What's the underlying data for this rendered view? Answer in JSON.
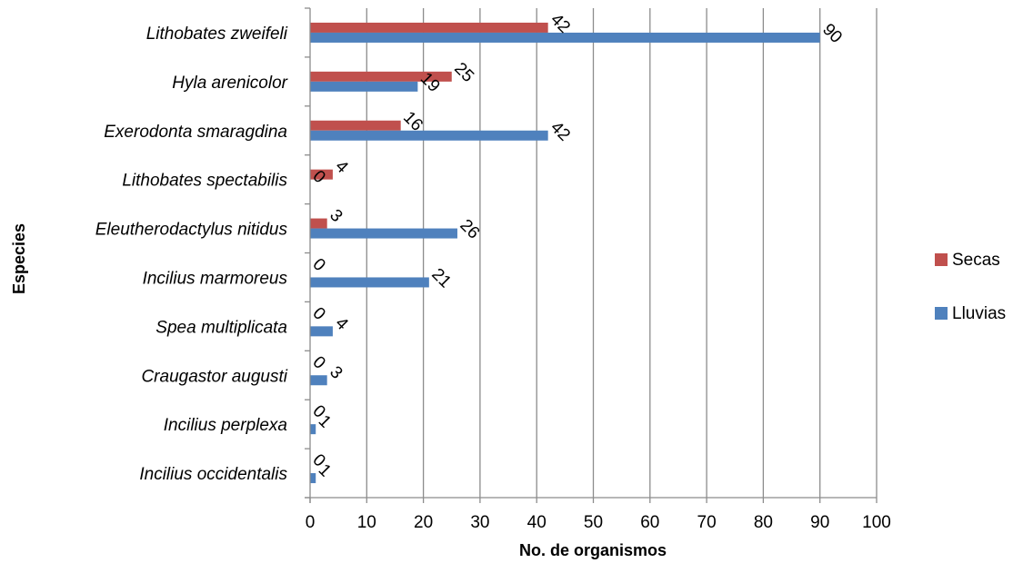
{
  "chart_data": {
    "type": "bar",
    "orientation": "horizontal",
    "categories": [
      "Lithobates zweifeli",
      "Hyla arenicolor",
      "Exerodonta smaragdina",
      "Lithobates spectabilis",
      "Eleutherodactylus nitidus",
      "Incilius marmoreus",
      "Spea multiplicata",
      "Craugastor augusti",
      "Incilius perplexa",
      "Incilius occidentalis"
    ],
    "series": [
      {
        "name": "Secas",
        "color": "#C0504D",
        "values": [
          42,
          25,
          16,
          4,
          3,
          0,
          0,
          0,
          0,
          0
        ]
      },
      {
        "name": "Lluvias",
        "color": "#4F81BD",
        "values": [
          90,
          19,
          42,
          0,
          26,
          21,
          4,
          3,
          1,
          1
        ]
      }
    ],
    "xlabel": "No. de organismos",
    "ylabel": "Especies",
    "xlim": [
      0,
      100
    ],
    "xticks": [
      0,
      10,
      20,
      30,
      40,
      50,
      60,
      70,
      80,
      90,
      100
    ],
    "grid": "vertical",
    "legend": "right",
    "data_labels": "rotated"
  }
}
